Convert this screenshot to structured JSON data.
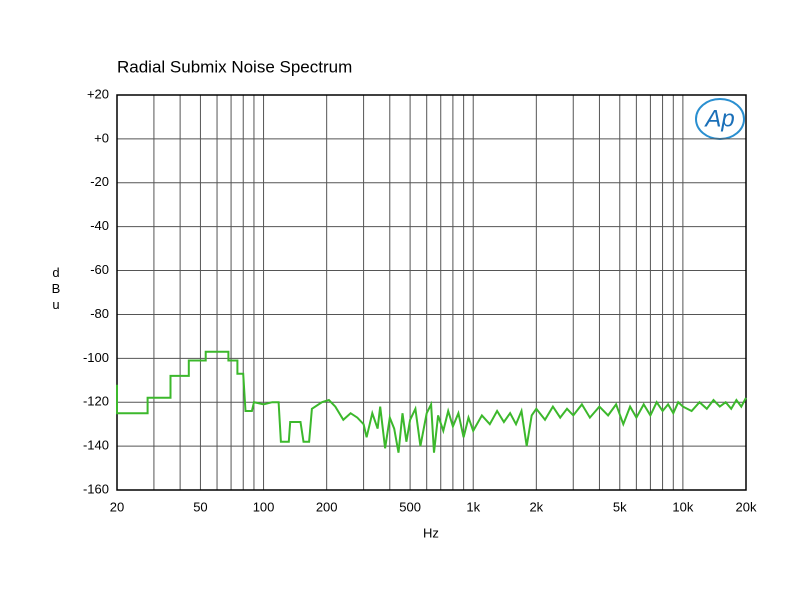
{
  "chart_data": {
    "type": "line",
    "title": "Radial Submix Noise Spectrum",
    "xlabel": "Hz",
    "ylabel": "dBu",
    "logo": "Ap",
    "xscale": "log",
    "grid": true,
    "xlim": [
      20,
      20000
    ],
    "ylim": [
      -160,
      20
    ],
    "xticks": [
      20,
      50,
      100,
      200,
      500,
      {
        "value": 1000,
        "label": "1k"
      },
      {
        "value": 2000,
        "label": "2k"
      },
      {
        "value": 5000,
        "label": "5k"
      },
      {
        "value": 10000,
        "label": "10k"
      },
      {
        "value": 20000,
        "label": "20k"
      }
    ],
    "xminor": [
      30,
      40,
      60,
      70,
      80,
      90,
      300,
      400,
      600,
      700,
      800,
      900,
      3000,
      4000,
      6000,
      7000,
      8000,
      9000
    ],
    "yticks": [
      {
        "value": 20,
        "label": "+20"
      },
      {
        "value": 0,
        "label": "+0"
      },
      -20,
      -40,
      -60,
      -80,
      -100,
      -120,
      -140,
      -160
    ],
    "x": [
      20,
      20,
      28,
      28,
      36,
      36,
      44,
      44,
      53,
      53,
      68,
      68,
      75,
      75,
      80,
      82,
      88,
      90,
      100,
      110,
      118,
      121,
      132,
      134,
      150,
      155,
      165,
      170,
      190,
      205,
      220,
      240,
      260,
      280,
      300,
      310,
      330,
      350,
      360,
      380,
      400,
      420,
      440,
      460,
      480,
      500,
      530,
      560,
      600,
      630,
      650,
      680,
      720,
      760,
      800,
      850,
      900,
      950,
      1000,
      1100,
      1200,
      1300,
      1400,
      1500,
      1600,
      1700,
      1800,
      1900,
      2000,
      2200,
      2400,
      2600,
      2800,
      3000,
      3300,
      3600,
      4000,
      4400,
      4800,
      5200,
      5600,
      6000,
      6500,
      7000,
      7500,
      8000,
      8500,
      9000,
      9500,
      10000,
      11000,
      12000,
      13000,
      14000,
      15000,
      16000,
      17000,
      18000,
      19000,
      20000
    ],
    "series": [
      {
        "color": "#3cb82c",
        "values": [
          -112,
          -125,
          -125,
          -118,
          -118,
          -108,
          -108,
          -101,
          -101,
          -97,
          -97,
          -101,
          -101,
          -107,
          -107,
          -124,
          -124,
          -120,
          -121,
          -120,
          -120,
          -138,
          -138,
          -129,
          -129,
          -138,
          -138,
          -123,
          -120,
          -119,
          -122,
          -128,
          -125,
          -127,
          -130,
          -136,
          -125,
          -132,
          -122,
          -141,
          -127,
          -132,
          -143,
          -125,
          -138,
          -128,
          -123,
          -140,
          -125,
          -121,
          -143,
          -126,
          -133,
          -124,
          -131,
          -125,
          -136,
          -127,
          -133,
          -126,
          -130,
          -124,
          -129,
          -125,
          -130,
          -124,
          -140,
          -126,
          -123,
          -128,
          -122,
          -127,
          -123,
          -126,
          -121,
          -127,
          -122,
          -126,
          -121,
          -130,
          -122,
          -127,
          -121,
          -126,
          -120,
          -124,
          -121,
          -125,
          -120,
          -122,
          -124,
          -120,
          -123,
          -119,
          -122,
          -120,
          -123,
          -119,
          -122,
          -118
        ]
      }
    ]
  }
}
